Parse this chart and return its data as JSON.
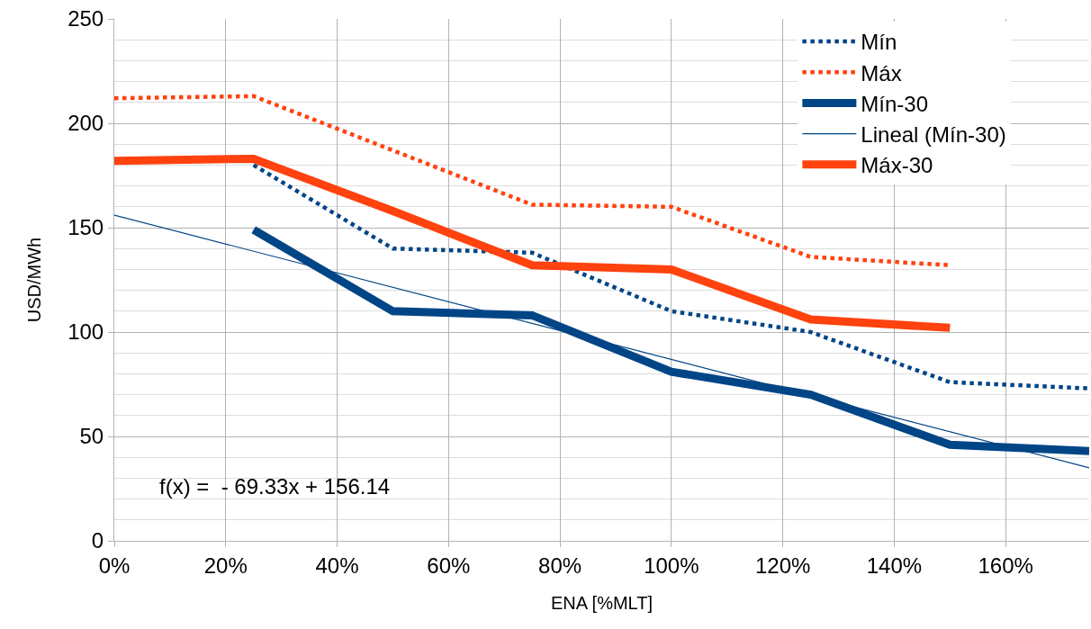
{
  "chart_data": {
    "type": "line",
    "xlabel": "ENA [%MLT]",
    "ylabel": "USD/MWh",
    "x": [
      0,
      0.25,
      0.5,
      0.75,
      1.0,
      1.25,
      1.5,
      1.75
    ],
    "xlim": [
      0,
      1.75
    ],
    "xticks": [
      {
        "value": 0,
        "label": "0%"
      },
      {
        "value": 0.2,
        "label": "20%"
      },
      {
        "value": 0.4,
        "label": "40%"
      },
      {
        "value": 0.6,
        "label": "60%"
      },
      {
        "value": 0.8,
        "label": "80%"
      },
      {
        "value": 1.0,
        "label": "100%"
      },
      {
        "value": 1.2,
        "label": "120%"
      },
      {
        "value": 1.4,
        "label": "140%"
      },
      {
        "value": 1.6,
        "label": "160%"
      }
    ],
    "ylim": [
      0,
      250
    ],
    "yticks": [
      0,
      {
        "value": 10,
        "label": null
      },
      {
        "value": 20,
        "label": null
      },
      {
        "value": 30,
        "label": null
      },
      {
        "value": 40,
        "label": null
      },
      50,
      {
        "value": 60,
        "label": null
      },
      {
        "value": 70,
        "label": null
      },
      {
        "value": 80,
        "label": null
      },
      {
        "value": 90,
        "label": null
      },
      100,
      {
        "value": 110,
        "label": null
      },
      {
        "value": 120,
        "label": null
      },
      {
        "value": 130,
        "label": null
      },
      {
        "value": 140,
        "label": null
      },
      150,
      {
        "value": 160,
        "label": null
      },
      {
        "value": 170,
        "label": null
      },
      {
        "value": 180,
        "label": null
      },
      {
        "value": 190,
        "label": null
      },
      200,
      {
        "value": 210,
        "label": null
      },
      {
        "value": 220,
        "label": null
      },
      {
        "value": 230,
        "label": null
      },
      {
        "value": 240,
        "label": null
      },
      250
    ],
    "grid": true,
    "legend": "top right",
    "annotations": [
      "f(x) =  - 69.33x + 156.14"
    ],
    "series": [
      {
        "name": "Mín",
        "color": "#004586",
        "line_style": "dotted",
        "values": [
          null,
          180,
          140,
          138,
          110,
          100,
          76,
          73
        ]
      },
      {
        "name": "Máx",
        "color": "#ff420e",
        "line_style": "dotted",
        "values": [
          212,
          213,
          187,
          161,
          160,
          136,
          132,
          null
        ]
      },
      {
        "name": "Mín-30",
        "color": "#004586",
        "line_style": "solid",
        "values": [
          null,
          149,
          110,
          108,
          81,
          70,
          46,
          43
        ]
      },
      {
        "name": "Lineal (Mín-30)",
        "type": "line",
        "color": "#004586",
        "line_style": "solid",
        "x": [
          0,
          1.75
        ],
        "values": [
          156,
          35
        ]
      },
      {
        "name": "Máx-30",
        "color": "#ff420e",
        "line_style": "solid",
        "values": [
          182,
          183,
          158,
          132,
          130,
          106,
          102,
          null
        ]
      }
    ]
  }
}
